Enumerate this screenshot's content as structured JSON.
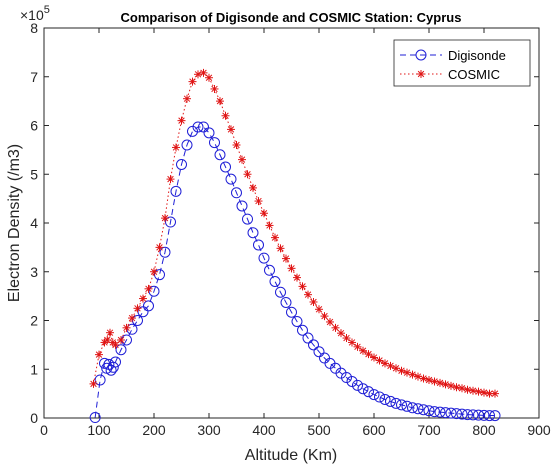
{
  "chart_data": {
    "type": "line",
    "title": "Comparison of Digisonde and COSMIC Station: Cyprus",
    "xlabel": "Altitude (Km)",
    "ylabel": "Electron Density (/m3)",
    "xlim": [
      0,
      900
    ],
    "ylim": [
      0,
      8
    ],
    "x_ticks": [
      "0",
      "100",
      "200",
      "300",
      "400",
      "500",
      "600",
      "700",
      "800",
      "900"
    ],
    "y_ticks": [
      "0",
      "1",
      "2",
      "3",
      "4",
      "5",
      "6",
      "7",
      "8"
    ],
    "y_exponent_base": "×10",
    "y_exponent_power": "5",
    "grid": false,
    "legend_position": "top-right",
    "series": [
      {
        "name": "Digisonde",
        "color": "#1f1fd6",
        "marker": "circle",
        "line": "dashed",
        "points": [
          [
            93,
            0.01
          ],
          [
            102,
            0.78
          ],
          [
            110,
            1.12
          ],
          [
            114,
            1.02
          ],
          [
            118,
            1.1
          ],
          [
            122,
            0.98
          ],
          [
            126,
            1.04
          ],
          [
            130,
            1.15
          ],
          [
            140,
            1.4
          ],
          [
            150,
            1.6
          ],
          [
            160,
            1.82
          ],
          [
            170,
            2.0
          ],
          [
            180,
            2.18
          ],
          [
            190,
            2.3
          ],
          [
            200,
            2.6
          ],
          [
            210,
            2.94
          ],
          [
            220,
            3.4
          ],
          [
            230,
            4.02
          ],
          [
            240,
            4.65
          ],
          [
            250,
            5.2
          ],
          [
            260,
            5.6
          ],
          [
            270,
            5.88
          ],
          [
            280,
            5.97
          ],
          [
            290,
            5.97
          ],
          [
            300,
            5.85
          ],
          [
            310,
            5.65
          ],
          [
            320,
            5.4
          ],
          [
            330,
            5.15
          ],
          [
            340,
            4.9
          ],
          [
            350,
            4.62
          ],
          [
            360,
            4.35
          ],
          [
            370,
            4.08
          ],
          [
            380,
            3.8
          ],
          [
            390,
            3.55
          ],
          [
            400,
            3.28
          ],
          [
            410,
            3.03
          ],
          [
            420,
            2.8
          ],
          [
            430,
            2.58
          ],
          [
            440,
            2.37
          ],
          [
            450,
            2.17
          ],
          [
            460,
            1.98
          ],
          [
            470,
            1.8
          ],
          [
            480,
            1.64
          ],
          [
            490,
            1.5
          ],
          [
            500,
            1.36
          ],
          [
            510,
            1.23
          ],
          [
            520,
            1.12
          ],
          [
            530,
            1.02
          ],
          [
            540,
            0.92
          ],
          [
            550,
            0.83
          ],
          [
            560,
            0.75
          ],
          [
            570,
            0.67
          ],
          [
            580,
            0.6
          ],
          [
            590,
            0.54
          ],
          [
            600,
            0.48
          ],
          [
            610,
            0.43
          ],
          [
            620,
            0.38
          ],
          [
            630,
            0.34
          ],
          [
            640,
            0.3
          ],
          [
            650,
            0.27
          ],
          [
            660,
            0.24
          ],
          [
            670,
            0.21
          ],
          [
            680,
            0.19
          ],
          [
            690,
            0.17
          ],
          [
            700,
            0.15
          ],
          [
            710,
            0.13
          ],
          [
            720,
            0.12
          ],
          [
            730,
            0.11
          ],
          [
            740,
            0.1
          ],
          [
            750,
            0.09
          ],
          [
            760,
            0.08
          ],
          [
            770,
            0.07
          ],
          [
            780,
            0.065
          ],
          [
            790,
            0.06
          ],
          [
            800,
            0.055
          ],
          [
            810,
            0.05
          ],
          [
            820,
            0.05
          ]
        ]
      },
      {
        "name": "COSMIC",
        "color": "#e01515",
        "marker": "star",
        "line": "dotted",
        "points": [
          [
            90,
            0.7
          ],
          [
            100,
            1.3
          ],
          [
            110,
            1.55
          ],
          [
            115,
            1.6
          ],
          [
            120,
            1.75
          ],
          [
            125,
            1.55
          ],
          [
            130,
            1.5
          ],
          [
            140,
            1.6
          ],
          [
            150,
            1.85
          ],
          [
            160,
            2.05
          ],
          [
            170,
            2.25
          ],
          [
            180,
            2.45
          ],
          [
            190,
            2.65
          ],
          [
            200,
            3.0
          ],
          [
            210,
            3.5
          ],
          [
            220,
            4.1
          ],
          [
            230,
            4.9
          ],
          [
            240,
            5.55
          ],
          [
            250,
            6.1
          ],
          [
            260,
            6.55
          ],
          [
            270,
            6.9
          ],
          [
            280,
            7.05
          ],
          [
            290,
            7.08
          ],
          [
            300,
            6.98
          ],
          [
            310,
            6.75
          ],
          [
            320,
            6.5
          ],
          [
            330,
            6.2
          ],
          [
            340,
            5.92
          ],
          [
            350,
            5.6
          ],
          [
            360,
            5.3
          ],
          [
            370,
            5.0
          ],
          [
            380,
            4.72
          ],
          [
            390,
            4.45
          ],
          [
            400,
            4.2
          ],
          [
            410,
            3.95
          ],
          [
            420,
            3.7
          ],
          [
            430,
            3.48
          ],
          [
            440,
            3.27
          ],
          [
            450,
            3.07
          ],
          [
            460,
            2.88
          ],
          [
            470,
            2.7
          ],
          [
            480,
            2.53
          ],
          [
            490,
            2.38
          ],
          [
            500,
            2.23
          ],
          [
            510,
            2.09
          ],
          [
            520,
            1.97
          ],
          [
            530,
            1.85
          ],
          [
            540,
            1.74
          ],
          [
            550,
            1.64
          ],
          [
            560,
            1.55
          ],
          [
            570,
            1.46
          ],
          [
            580,
            1.38
          ],
          [
            590,
            1.31
          ],
          [
            600,
            1.24
          ],
          [
            610,
            1.18
          ],
          [
            620,
            1.12
          ],
          [
            630,
            1.07
          ],
          [
            640,
            1.02
          ],
          [
            650,
            0.97
          ],
          [
            660,
            0.93
          ],
          [
            670,
            0.89
          ],
          [
            680,
            0.85
          ],
          [
            690,
            0.81
          ],
          [
            700,
            0.78
          ],
          [
            710,
            0.75
          ],
          [
            720,
            0.72
          ],
          [
            730,
            0.69
          ],
          [
            740,
            0.66
          ],
          [
            750,
            0.63
          ],
          [
            760,
            0.61
          ],
          [
            770,
            0.58
          ],
          [
            780,
            0.56
          ],
          [
            790,
            0.54
          ],
          [
            800,
            0.52
          ],
          [
            810,
            0.5
          ],
          [
            820,
            0.5
          ]
        ]
      }
    ]
  }
}
